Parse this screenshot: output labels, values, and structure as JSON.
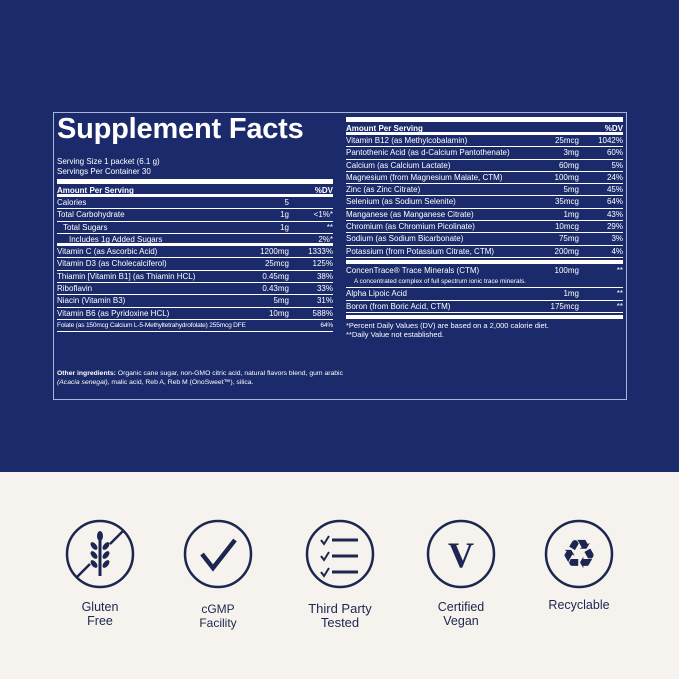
{
  "colors": {
    "navy": "#1b2a6a",
    "cream": "#f6f2ed",
    "icon": "#1c2650"
  },
  "title": "Supplement Facts",
  "serving_size": "Serving Size 1 packet (6.1 g)",
  "servings_per_container": "Servings Per Container 30",
  "left_table": {
    "header": {
      "name": "Amount Per Serving",
      "dv": "%DV"
    },
    "rows": [
      {
        "name": "Calories",
        "amount": "5",
        "dv": ""
      },
      {
        "name": "Total Carbohydrate",
        "amount": "1g",
        "dv": "<1%*"
      },
      {
        "name": "Total Sugars",
        "amount": "1g",
        "dv": "**"
      },
      {
        "name": "Includes 1g Added Sugars",
        "amount": "",
        "dv": "2%*"
      },
      {
        "name": "Vitamin C (as Ascorbic Acid)",
        "amount": "1200mg",
        "dv": "1333%"
      },
      {
        "name": "Vitamin D3 (as Cholecalciferol)",
        "amount": "25mcg",
        "dv": "125%"
      },
      {
        "name": "Thiamin [Vitamin B1] (as Thiamin HCL)",
        "amount": "0.45mg",
        "dv": "38%"
      },
      {
        "name": "Riboflavin",
        "amount": "0.43mg",
        "dv": "33%"
      },
      {
        "name": "Niacin (Vitamin B3)",
        "amount": "5mg",
        "dv": "31%"
      },
      {
        "name": "Vitamin B6 (as Pyridoxine HCL)",
        "amount": "10mg",
        "dv": "588%"
      },
      {
        "name": "Folate (as 150mcg Calcium L-5-Methyltetrahydrofolate) 255mcg DFE",
        "amount": "",
        "dv": "64%"
      }
    ]
  },
  "right_table": {
    "header": {
      "name": "Amount Per Serving",
      "dv": "%DV"
    },
    "rows": [
      {
        "name": "Vitamin B12 (as Methylcobalamin)",
        "amount": "25mcg",
        "dv": "1042%"
      },
      {
        "name": "Pantothenic Acid (as d-Calcium Pantothenate)",
        "amount": "3mg",
        "dv": "60%"
      },
      {
        "name": "Calcium (as Calcium Lactate)",
        "amount": "60mg",
        "dv": "5%"
      },
      {
        "name": "Magnesium (from Magnesium Malate, CTM)",
        "amount": "100mg",
        "dv": "24%"
      },
      {
        "name": "Zinc (as Zinc Citrate)",
        "amount": "5mg",
        "dv": "45%"
      },
      {
        "name": "Selenium (as Sodium Selenite)",
        "amount": "35mcg",
        "dv": "64%"
      },
      {
        "name": "Manganese (as Manganese Citrate)",
        "amount": "1mg",
        "dv": "43%"
      },
      {
        "name": "Chromium (as Chromium Picolinate)",
        "amount": "10mcg",
        "dv": "29%"
      },
      {
        "name": "Sodium (as Sodium Bicarbonate)",
        "amount": "75mg",
        "dv": "3%"
      },
      {
        "name": "Potassium (from Potassium Citrate, CTM)",
        "amount": "200mg",
        "dv": "4%"
      }
    ],
    "ctm": {
      "name": "ConcenTrace® Trace Minerals (CTM)",
      "amount": "100mg",
      "dv": "**",
      "note": "A concentrated complex of full spectrum ionic trace minerals."
    },
    "rows2": [
      {
        "name": "Alpha Lipoic Acid",
        "amount": "1mg",
        "dv": "**"
      },
      {
        "name": "Boron (from Boric Acid, CTM)",
        "amount": "175mcg",
        "dv": "**"
      }
    ],
    "footnote1": "*Percent Daily Values (DV) are based on a 2,000 calorie diet.",
    "footnote2": "**Daily Value not established."
  },
  "other_ingredients": {
    "label": "Other ingredients:",
    "text1": " Organic cane sugar, non-GMO citric acid, natural flavors blend, gum arabic ",
    "italic": "(Acacia senegal)",
    "text2": ",  malic acid, Reb A, Reb M (OnoSweet™), silica."
  },
  "badges": [
    {
      "icon": "gluten-free-icon",
      "label": "Gluten Free"
    },
    {
      "icon": "checkmark-icon",
      "label": "cGMP Facility"
    },
    {
      "icon": "checklist-icon",
      "label": "Third Party Tested"
    },
    {
      "icon": "vegan-v-icon",
      "label": "Certified Vegan"
    },
    {
      "icon": "recycle-icon",
      "label": "Recyclable"
    }
  ]
}
